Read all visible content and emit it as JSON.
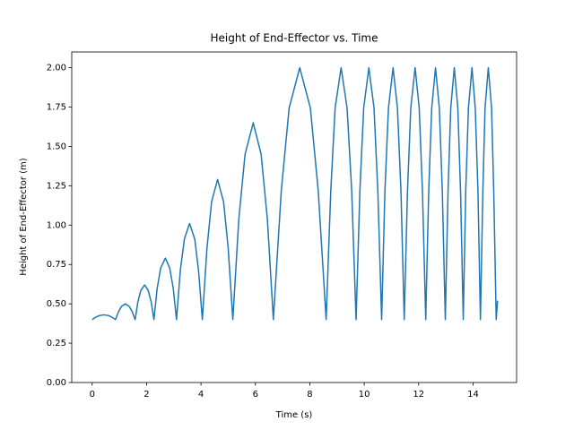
{
  "chart_data": {
    "type": "line",
    "title": "Height of End-Effector vs. Time",
    "x_label": "Time (s)",
    "y_label": "Height of End-Effector (m)",
    "x": [
      0,
      0.13,
      0.26,
      0.43,
      0.6,
      0.73,
      0.86,
      0.97,
      1.08,
      1.22,
      1.36,
      1.47,
      1.58,
      1.68,
      1.79,
      1.93,
      2.06,
      2.17,
      2.27,
      2.39,
      2.52,
      2.69,
      2.85,
      2.98,
      3.1,
      3.24,
      3.39,
      3.58,
      3.77,
      3.91,
      4.05,
      4.22,
      4.39,
      4.61,
      4.83,
      5.0,
      5.17,
      5.39,
      5.62,
      5.92,
      6.21,
      6.44,
      6.66,
      6.95,
      7.24,
      7.63,
      8.02,
      8.31,
      8.6,
      8.77,
      8.93,
      9.15,
      9.37,
      9.54,
      9.7,
      9.84,
      9.98,
      10.17,
      10.36,
      10.5,
      10.64,
      10.76,
      10.89,
      11.06,
      11.22,
      11.35,
      11.47,
      11.59,
      11.71,
      11.87,
      12.02,
      12.14,
      12.26,
      12.37,
      12.48,
      12.62,
      12.76,
      12.87,
      12.98,
      13.08,
      13.18,
      13.31,
      13.44,
      13.54,
      13.64,
      13.73,
      13.83,
      13.96,
      14.08,
      14.18,
      14.27,
      14.36,
      14.44,
      14.56,
      14.68,
      14.76,
      14.85,
      14.9
    ],
    "series": [
      {
        "name": "Height",
        "color": "#1f77b4",
        "values": [
          0.4,
          0.415,
          0.425,
          0.43,
          0.425,
          0.415,
          0.4,
          0.451,
          0.484,
          0.5,
          0.484,
          0.451,
          0.4,
          0.512,
          0.585,
          0.62,
          0.585,
          0.512,
          0.4,
          0.599,
          0.728,
          0.79,
          0.728,
          0.599,
          0.4,
          0.711,
          0.912,
          1.01,
          0.912,
          0.711,
          0.4,
          0.854,
          1.148,
          1.29,
          1.148,
          0.854,
          0.4,
          1.038,
          1.45,
          1.65,
          1.45,
          1.038,
          0.4,
          1.216,
          1.744,
          2.0,
          1.744,
          1.216,
          0.4,
          1.216,
          1.744,
          2.0,
          1.744,
          1.216,
          0.4,
          1.216,
          1.744,
          2.0,
          1.744,
          1.216,
          0.4,
          1.216,
          1.744,
          2.0,
          1.744,
          1.216,
          0.4,
          1.216,
          1.744,
          2.0,
          1.744,
          1.216,
          0.4,
          1.216,
          1.744,
          2.0,
          1.744,
          1.216,
          0.4,
          1.216,
          1.744,
          2.0,
          1.744,
          1.216,
          0.4,
          1.216,
          1.744,
          2.0,
          1.744,
          1.216,
          0.4,
          1.216,
          1.744,
          2.0,
          1.744,
          1.216,
          0.4,
          0.52
        ]
      }
    ],
    "xlim": [
      -0.75,
      15.6
    ],
    "ylim": [
      0,
      2.1
    ],
    "xticks": [
      0,
      2,
      4,
      6,
      8,
      10,
      12,
      14
    ],
    "yticks": [
      {
        "value": 0,
        "label": "0.00"
      },
      {
        "value": 0.25,
        "label": "0.25"
      },
      {
        "value": 0.5,
        "label": "0.50"
      },
      {
        "value": 0.75,
        "label": "0.75"
      },
      {
        "value": 1,
        "label": "1.00"
      },
      {
        "value": 1.25,
        "label": "1.25"
      },
      {
        "value": 1.5,
        "label": "1.50"
      },
      {
        "value": 1.75,
        "label": "1.75"
      },
      {
        "value": 2,
        "label": "2.00"
      }
    ],
    "grid": false
  }
}
